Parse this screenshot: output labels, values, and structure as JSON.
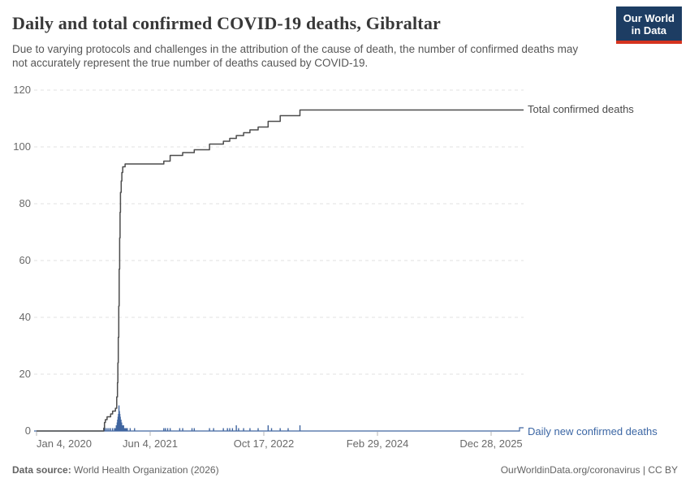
{
  "header": {
    "title": "Daily and total confirmed COVID-19 deaths, Gibraltar",
    "subtitle": "Due to varying protocols and challenges in the attribution of the cause of death, the number of confirmed deaths may not accurately represent the true number of deaths caused by COVID-19.",
    "logo_line1": "Our World",
    "logo_line2": "in Data"
  },
  "footer": {
    "source_label": "Data source:",
    "source_value": " World Health Organization (2026)",
    "right_text": "OurWorldinData.org/coronavirus | CC BY"
  },
  "colors": {
    "total_line": "#4c4c4c",
    "daily_line": "#4166a0",
    "grid": "#e2e2e2",
    "tick": "#b5b5b5",
    "axis_text": "#696969",
    "logo_bg": "#1d3d63",
    "logo_red": "#d5331f"
  },
  "chart_data": {
    "type": "line",
    "title": "Daily and total confirmed COVID-19 deaths, Gibraltar",
    "ylim": [
      0,
      120
    ],
    "y_ticks": [
      0,
      20,
      40,
      60,
      80,
      100,
      120
    ],
    "x_ticks": [
      "Jan 4, 2020",
      "Jun 4, 2021",
      "Oct 17, 2022",
      "Feb 29, 2024",
      "Dec 28, 2025"
    ],
    "x_end_date": "Mar 28, 2026",
    "grid": "dashed horizontal",
    "legend_position": "labels at right end of each series",
    "series": [
      {
        "name": "Total confirmed deaths",
        "style": "step-line",
        "points": [
          [
            "2020-01-04",
            0
          ],
          [
            "2020-11-01",
            0
          ],
          [
            "2020-11-05",
            1
          ],
          [
            "2020-11-08",
            3
          ],
          [
            "2020-11-12",
            4
          ],
          [
            "2020-11-20",
            5
          ],
          [
            "2020-12-06",
            6
          ],
          [
            "2020-12-15",
            7
          ],
          [
            "2020-12-28",
            8
          ],
          [
            "2021-01-03",
            12
          ],
          [
            "2021-01-06",
            17
          ],
          [
            "2021-01-08",
            24
          ],
          [
            "2021-01-10",
            33
          ],
          [
            "2021-01-12",
            44
          ],
          [
            "2021-01-14",
            57
          ],
          [
            "2021-01-16",
            68
          ],
          [
            "2021-01-18",
            77
          ],
          [
            "2021-01-20",
            84
          ],
          [
            "2021-01-23",
            88
          ],
          [
            "2021-01-26",
            91
          ],
          [
            "2021-01-30",
            93
          ],
          [
            "2021-02-10",
            94
          ],
          [
            "2021-08-03",
            95
          ],
          [
            "2021-08-31",
            97
          ],
          [
            "2021-10-25",
            98
          ],
          [
            "2021-12-15",
            99
          ],
          [
            "2022-02-20",
            101
          ],
          [
            "2022-04-22",
            102
          ],
          [
            "2022-05-20",
            103
          ],
          [
            "2022-06-18",
            104
          ],
          [
            "2022-07-20",
            105
          ],
          [
            "2022-08-17",
            106
          ],
          [
            "2022-09-22",
            107
          ],
          [
            "2022-11-05",
            109
          ],
          [
            "2022-12-28",
            111
          ],
          [
            "2023-03-25",
            113
          ],
          [
            "2026-03-28",
            113
          ]
        ]
      },
      {
        "name": "Daily new confirmed deaths",
        "style": "spike-bars",
        "points": [
          [
            "2020-11-05",
            1
          ],
          [
            "2020-11-08",
            2
          ],
          [
            "2020-11-12",
            1
          ],
          [
            "2020-11-20",
            1
          ],
          [
            "2020-11-28",
            1
          ],
          [
            "2020-12-06",
            1
          ],
          [
            "2020-12-15",
            1
          ],
          [
            "2020-12-24",
            1
          ],
          [
            "2020-12-28",
            1
          ],
          [
            "2021-01-01",
            2
          ],
          [
            "2021-01-03",
            2
          ],
          [
            "2021-01-04",
            1
          ],
          [
            "2021-01-05",
            3
          ],
          [
            "2021-01-06",
            2
          ],
          [
            "2021-01-07",
            4
          ],
          [
            "2021-01-08",
            3
          ],
          [
            "2021-01-09",
            5
          ],
          [
            "2021-01-10",
            4
          ],
          [
            "2021-01-11",
            6
          ],
          [
            "2021-01-12",
            5
          ],
          [
            "2021-01-13",
            9
          ],
          [
            "2021-01-14",
            6
          ],
          [
            "2021-01-15",
            7
          ],
          [
            "2021-01-16",
            5
          ],
          [
            "2021-01-17",
            6
          ],
          [
            "2021-01-18",
            4
          ],
          [
            "2021-01-19",
            5
          ],
          [
            "2021-01-20",
            4
          ],
          [
            "2021-01-21",
            3
          ],
          [
            "2021-01-22",
            4
          ],
          [
            "2021-01-23",
            3
          ],
          [
            "2021-01-24",
            2
          ],
          [
            "2021-01-25",
            3
          ],
          [
            "2021-01-26",
            2
          ],
          [
            "2021-01-28",
            2
          ],
          [
            "2021-01-30",
            2
          ],
          [
            "2021-02-01",
            1
          ],
          [
            "2021-02-03",
            2
          ],
          [
            "2021-02-05",
            1
          ],
          [
            "2021-02-08",
            1
          ],
          [
            "2021-02-12",
            1
          ],
          [
            "2021-02-16",
            1
          ],
          [
            "2021-02-20",
            1
          ],
          [
            "2021-03-05",
            1
          ],
          [
            "2021-03-25",
            1
          ],
          [
            "2021-08-03",
            1
          ],
          [
            "2021-08-10",
            1
          ],
          [
            "2021-08-20",
            1
          ],
          [
            "2021-08-31",
            1
          ],
          [
            "2021-10-12",
            1
          ],
          [
            "2021-10-25",
            1
          ],
          [
            "2021-12-05",
            1
          ],
          [
            "2021-12-15",
            1
          ],
          [
            "2022-02-20",
            1
          ],
          [
            "2022-03-10",
            1
          ],
          [
            "2022-04-22",
            1
          ],
          [
            "2022-05-10",
            1
          ],
          [
            "2022-05-20",
            1
          ],
          [
            "2022-06-01",
            1
          ],
          [
            "2022-06-18",
            2
          ],
          [
            "2022-06-28",
            1
          ],
          [
            "2022-07-20",
            1
          ],
          [
            "2022-08-17",
            1
          ],
          [
            "2022-09-22",
            1
          ],
          [
            "2022-11-05",
            2
          ],
          [
            "2022-11-20",
            1
          ],
          [
            "2022-12-28",
            1
          ],
          [
            "2023-02-01",
            1
          ],
          [
            "2023-03-25",
            2
          ]
        ]
      }
    ]
  }
}
